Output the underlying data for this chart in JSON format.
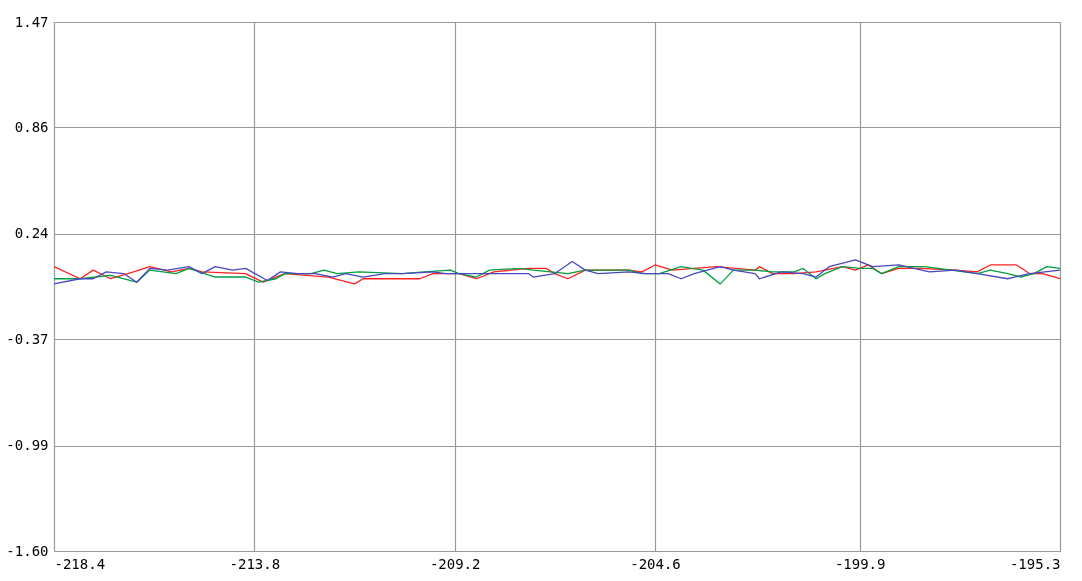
{
  "chart_data": {
    "type": "line",
    "xlim": [
      -218.4,
      -195.3
    ],
    "xticks": [
      -218.4,
      -213.8,
      -209.2,
      -204.6,
      -199.9,
      -195.3
    ],
    "ylim": [
      -1.6,
      1.47
    ],
    "yticks": [
      {
        "value": -1.6,
        "label": "-1.60"
      },
      -0.99,
      -0.37,
      0.24,
      0.86,
      1.47
    ],
    "grid": true,
    "legend": false,
    "marker": "none",
    "line_style": "solid",
    "series": [
      {
        "color": "#ff2020",
        "x": [
          -218.4,
          -217.8,
          -217.5,
          -217.1,
          -216.7,
          -216.2,
          -215.7,
          -215.3,
          -215.0,
          -214.0,
          -213.6,
          -213.1,
          -212.1,
          -211.5,
          -211.3,
          -210.4,
          -210.0,
          -209.7,
          -209.1,
          -208.7,
          -208.3,
          -207.5,
          -207.1,
          -206.9,
          -206.6,
          -206.2,
          -205.2,
          -204.9,
          -204.6,
          -204.2,
          -203.7,
          -203.2,
          -202.3,
          -202.2,
          -201.9,
          -201.4,
          -200.9,
          -200.7,
          -200.3,
          -200.0,
          -199.7,
          -199.4,
          -199.0,
          -198.5,
          -197.7,
          -197.2,
          -196.9,
          -196.3,
          -196.0,
          -195.7,
          -195.3
        ],
        "values": [
          0.05,
          -0.02,
          0.03,
          -0.02,
          0.01,
          0.05,
          0.02,
          0.04,
          0.02,
          0.01,
          -0.04,
          0.01,
          -0.01,
          -0.05,
          -0.02,
          -0.02,
          -0.02,
          0.01,
          0.01,
          -0.02,
          0.02,
          0.04,
          0.04,
          0.01,
          -0.02,
          0.03,
          0.03,
          0.02,
          0.06,
          0.03,
          0.04,
          0.05,
          0.03,
          0.05,
          0.01,
          0.01,
          0.02,
          0.03,
          0.05,
          0.03,
          0.06,
          0.01,
          0.04,
          0.04,
          0.03,
          0.02,
          0.06,
          0.06,
          0.01,
          0.01,
          -0.02
        ]
      },
      {
        "color": "#00a040",
        "x": [
          -218.4,
          -217.8,
          -217.1,
          -216.5,
          -216.2,
          -215.6,
          -215.3,
          -214.7,
          -214.0,
          -213.7,
          -213.3,
          -213.1,
          -212.5,
          -212.2,
          -211.9,
          -211.4,
          -210.4,
          -209.9,
          -209.3,
          -209.1,
          -208.7,
          -208.4,
          -207.7,
          -207.4,
          -206.6,
          -206.2,
          -205.2,
          -204.9,
          -204.5,
          -204.0,
          -203.5,
          -203.1,
          -202.8,
          -202.3,
          -201.9,
          -201.4,
          -201.2,
          -200.9,
          -200.7,
          -200.3,
          -199.9,
          -199.6,
          -199.4,
          -199.0,
          -198.4,
          -197.8,
          -197.2,
          -196.9,
          -196.5,
          -196.2,
          -195.9,
          -195.6,
          -195.3
        ],
        "values": [
          -0.02,
          -0.02,
          0.0,
          -0.04,
          0.03,
          0.01,
          0.04,
          -0.01,
          -0.01,
          -0.04,
          -0.02,
          0.01,
          0.01,
          0.03,
          0.01,
          0.02,
          0.01,
          0.02,
          0.03,
          0.01,
          -0.01,
          0.03,
          0.04,
          0.03,
          0.01,
          0.03,
          0.03,
          0.01,
          0.01,
          0.05,
          0.03,
          -0.05,
          0.03,
          0.03,
          0.02,
          0.02,
          0.04,
          -0.02,
          0.01,
          0.05,
          0.04,
          0.04,
          0.01,
          0.05,
          0.05,
          0.03,
          0.01,
          0.03,
          0.01,
          -0.01,
          0.01,
          0.05,
          0.04
        ]
      },
      {
        "color": "#4848c0",
        "x": [
          -218.4,
          -217.8,
          -217.5,
          -217.2,
          -216.8,
          -216.5,
          -216.2,
          -215.8,
          -215.3,
          -215.0,
          -214.7,
          -214.3,
          -214.0,
          -213.5,
          -213.2,
          -212.8,
          -212.4,
          -212.0,
          -211.7,
          -211.3,
          -210.8,
          -210.4,
          -209.7,
          -209.4,
          -208.8,
          -208.5,
          -207.5,
          -207.4,
          -206.9,
          -206.5,
          -206.2,
          -205.9,
          -205.2,
          -204.8,
          -204.3,
          -204.0,
          -203.7,
          -203.1,
          -202.8,
          -202.3,
          -202.2,
          -201.7,
          -201.2,
          -200.9,
          -200.6,
          -200.0,
          -199.6,
          -199.0,
          -198.3,
          -197.7,
          -197.2,
          -196.5,
          -196.0,
          -195.3
        ],
        "values": [
          -0.05,
          -0.02,
          -0.02,
          0.02,
          0.01,
          -0.04,
          0.04,
          0.03,
          0.05,
          0.01,
          0.05,
          0.03,
          0.04,
          -0.03,
          0.02,
          0.01,
          0.01,
          -0.01,
          0.01,
          -0.01,
          0.01,
          0.01,
          0.02,
          0.01,
          0.01,
          0.01,
          0.01,
          -0.01,
          0.01,
          0.08,
          0.03,
          0.01,
          0.02,
          0.01,
          0.01,
          -0.02,
          0.01,
          0.05,
          0.03,
          0.01,
          -0.02,
          0.02,
          0.01,
          -0.01,
          0.05,
          0.09,
          0.05,
          0.06,
          0.02,
          0.03,
          0.01,
          -0.02,
          0.01,
          0.03
        ]
      }
    ]
  }
}
